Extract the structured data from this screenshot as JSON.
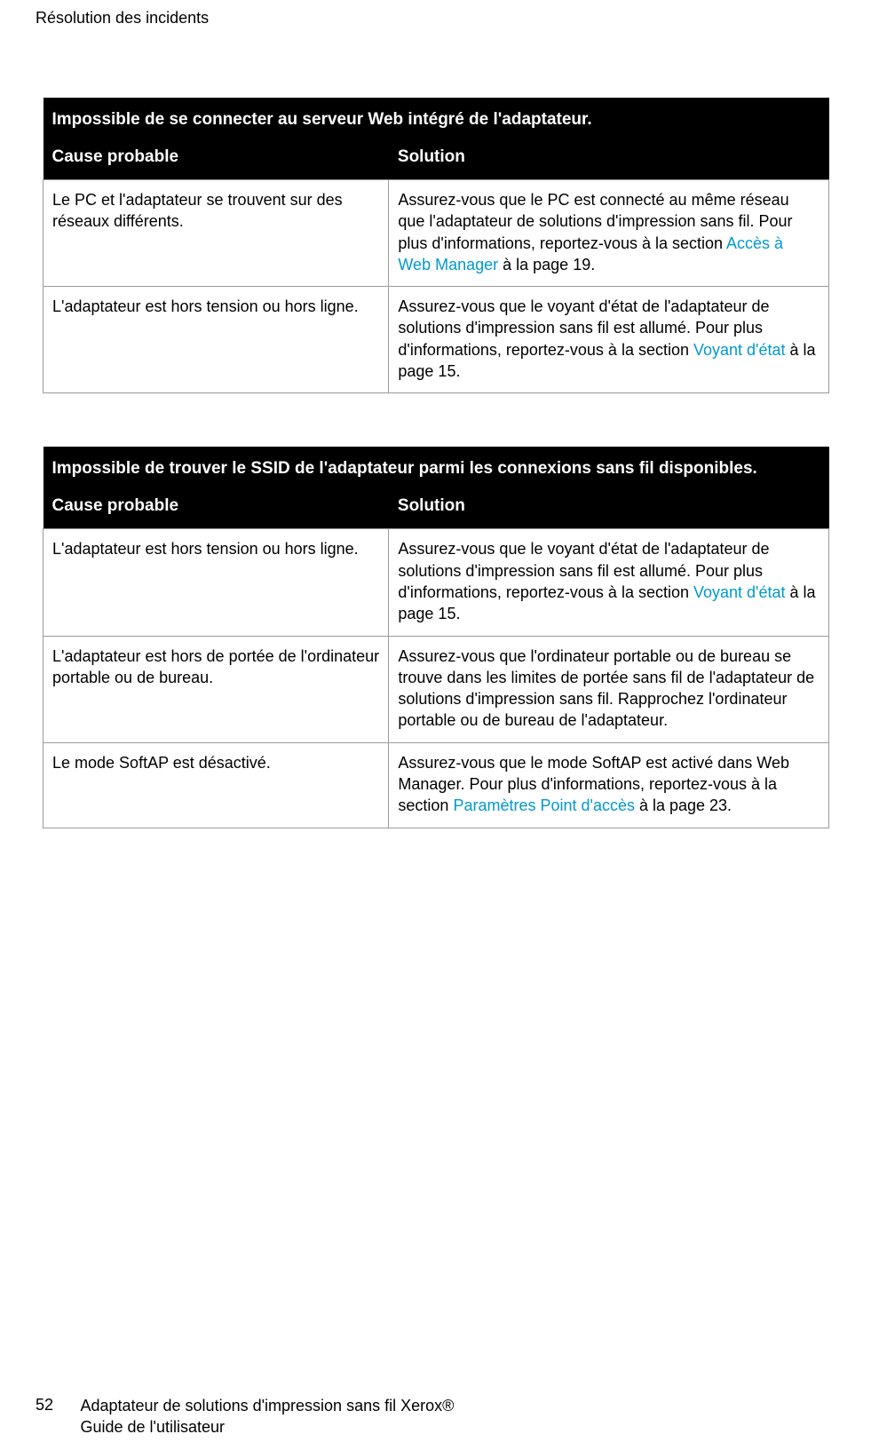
{
  "header": {
    "section_title": "Résolution des incidents"
  },
  "tables": [
    {
      "title": "Impossible de se connecter au serveur Web intégré de l'adaptateur.",
      "col_cause": "Cause probable",
      "col_solution": "Solution",
      "rows": [
        {
          "cause": "Le PC et l'adaptateur se trouvent sur des réseaux différents.",
          "sol_before": "Assurez-vous que le PC est connecté au même réseau que l'adaptateur de solutions d'impression sans fil. Pour plus d'informations, reportez-vous à la section ",
          "sol_link": "Accès à Web Manager",
          "sol_after": " à la page 19."
        },
        {
          "cause": "L'adaptateur est hors tension ou hors ligne.",
          "sol_before": "Assurez-vous que le voyant d'état de l'adaptateur de solutions d'impression sans fil est allumé. Pour plus d'informations, reportez-vous à la section ",
          "sol_link": "Voyant d'état",
          "sol_after": " à la page 15."
        }
      ]
    },
    {
      "title": "Impossible de trouver le SSID de l'adaptateur parmi les connexions sans fil disponibles.",
      "col_cause": "Cause probable",
      "col_solution": "Solution",
      "rows": [
        {
          "cause": "L'adaptateur est hors tension ou hors ligne.",
          "sol_before": "Assurez-vous que le voyant d'état de l'adaptateur de solutions d'impression sans fil est allumé. Pour plus d'informations, reportez-vous à la section ",
          "sol_link": "Voyant d'état",
          "sol_after": " à la page 15."
        },
        {
          "cause": "L'adaptateur est hors de portée de l'ordinateur portable ou de bureau.",
          "sol_before": "Assurez-vous que l'ordinateur portable ou de bureau se trouve dans les limites de portée sans fil de l'adaptateur de solutions d'impression sans fil. Rapprochez l'ordinateur portable ou de bureau de l'adaptateur.",
          "sol_link": "",
          "sol_after": ""
        },
        {
          "cause": "Le mode SoftAP est désactivé.",
          "sol_before": "Assurez-vous que le mode SoftAP est activé dans Web Manager. Pour plus d'informations, reportez-vous à la section ",
          "sol_link": "Paramètres Point d'accès",
          "sol_after": " à la page 23."
        }
      ]
    }
  ],
  "footer": {
    "page_number": "52",
    "line1": "Adaptateur de solutions d'impression sans fil Xerox®",
    "line2": "Guide de l'utilisateur"
  }
}
